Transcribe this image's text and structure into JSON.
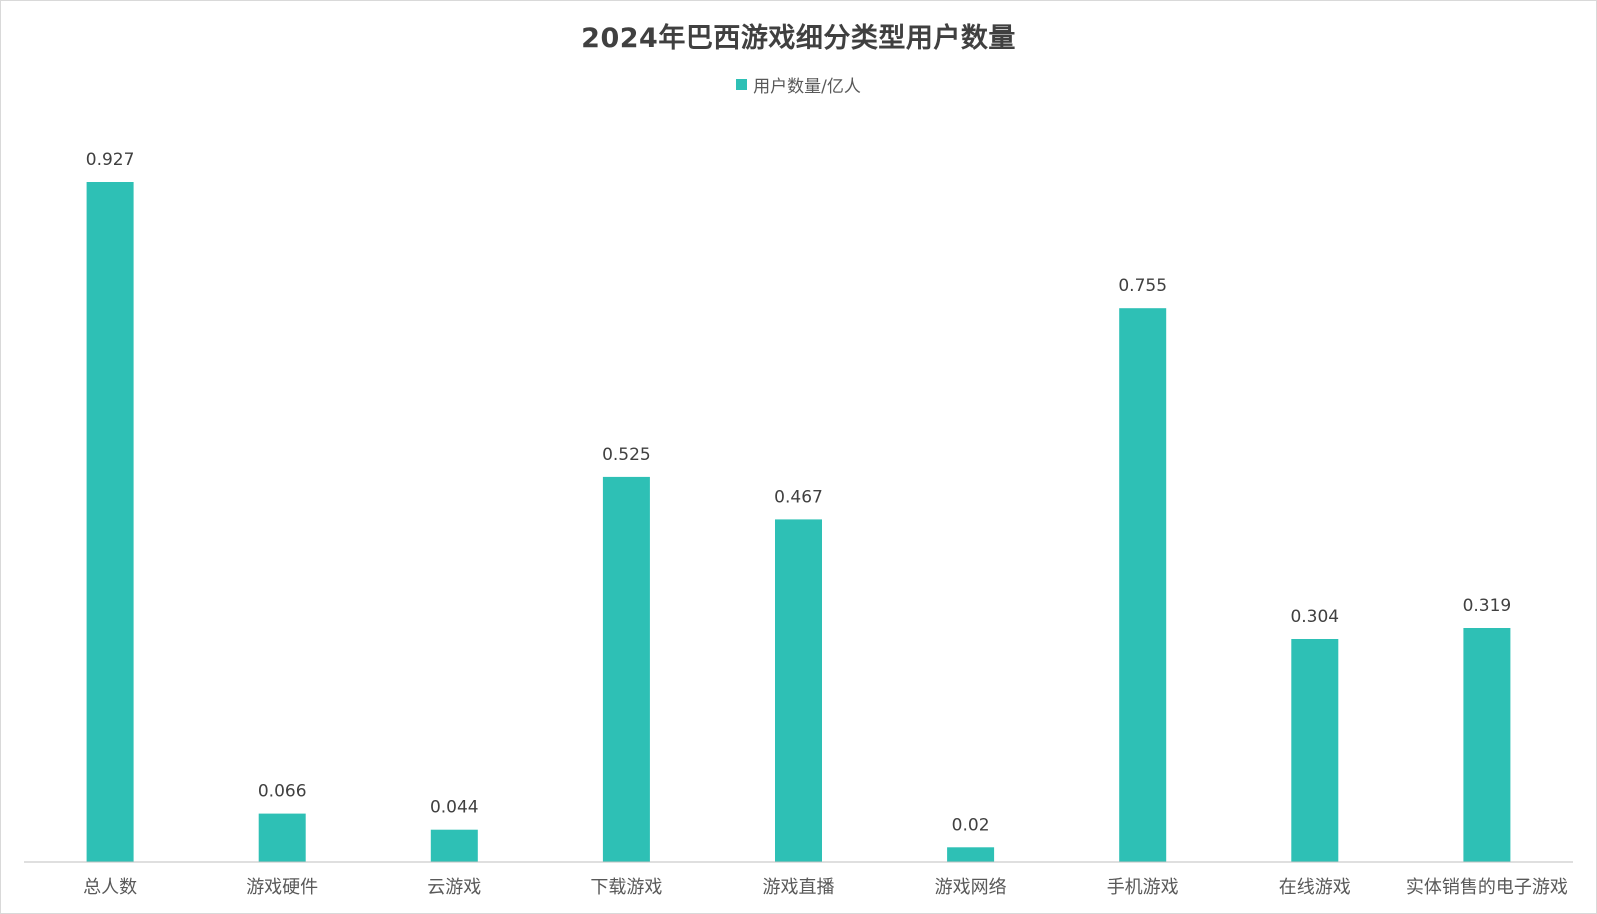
{
  "chart_data": {
    "type": "bar",
    "title": "2024年巴西游戏细分类型用户数量",
    "categories": [
      "总人数",
      "游戏硬件",
      "云游戏",
      "下载游戏",
      "游戏直播",
      "游戏网络",
      "手机游戏",
      "在线游戏",
      "实体销售的电子游戏"
    ],
    "series": [
      {
        "name": "用户数量/亿人",
        "values": [
          0.927,
          0.066,
          0.044,
          0.525,
          0.467,
          0.02,
          0.755,
          0.304,
          0.319
        ],
        "labels": [
          "0.927",
          "0.066",
          "0.044",
          "0.525",
          "0.467",
          "0.02",
          "0.755",
          "0.304",
          "0.319"
        ]
      }
    ],
    "xlabel": "",
    "ylabel": "",
    "ylim": [
      0,
      1
    ],
    "grid": false,
    "legend_position": "top",
    "bar_color": "#2EC0B5"
  }
}
